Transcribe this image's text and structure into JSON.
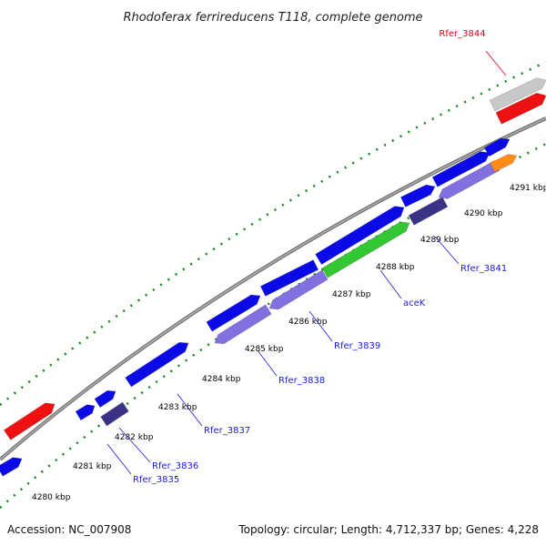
{
  "title": "Rhodoferax ferrireducens T118, complete genome",
  "footer": {
    "accession": "Accession: NC_007908",
    "summary": "Topology: circular; Length: 4,712,337 bp; Genes: 4,228"
  },
  "ticks": [
    "4280 kbp",
    "4281 kbp",
    "4282 kbp",
    "4283 kbp",
    "4284 kbp",
    "4285 kbp",
    "4286 kbp",
    "4287 kbp",
    "4288 kbp",
    "4289 kbp",
    "4290 kbp",
    "4291 kbp"
  ],
  "genes": [
    {
      "name": "Rfer_3835"
    },
    {
      "name": "Rfer_3836"
    },
    {
      "name": "Rfer_3837"
    },
    {
      "name": "Rfer_3838"
    },
    {
      "name": "Rfer_3839"
    },
    {
      "name": "aceK"
    },
    {
      "name": "Rfer_3841"
    },
    {
      "name": "Rfer_3844"
    }
  ],
  "colors": {
    "forward_cds": "#0a0ae6",
    "reverse_cds": "#8070e0",
    "dark_cds": "#3a3284",
    "highlight": "#33c733",
    "rna": "#ff8c1a",
    "red_feature": "#ee1111",
    "grey_feature": "#c8c8c8",
    "backbone": "#888888",
    "ticks": "#118811"
  }
}
